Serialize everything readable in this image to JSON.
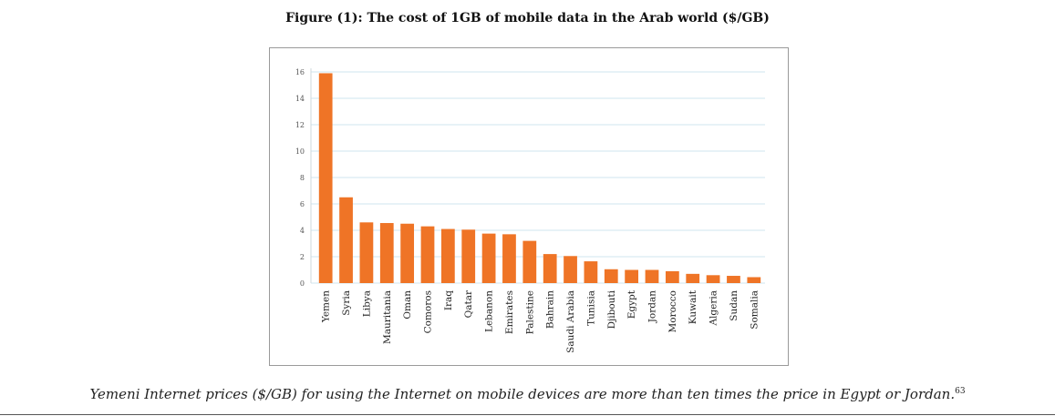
{
  "figure": {
    "title": "Figure (1): The cost of 1GB of mobile data in the Arab world ($/GB)",
    "caption": "Yemeni Internet prices ($/GB) for using the Internet on mobile devices are more than ten times the price in Egypt or Jordan.",
    "footnote": "63"
  },
  "chart_data": {
    "type": "bar",
    "title": "Figure (1): The cost of 1GB of mobile data in the Arab world ($/GB)",
    "xlabel": "",
    "ylabel": "",
    "ylim": [
      0,
      16
    ],
    "yticks": [
      0,
      2,
      4,
      6,
      8,
      10,
      12,
      14,
      16
    ],
    "grid": true,
    "legend": "none",
    "bar_color": "#ef7426",
    "grid_color": "#cfe6ef",
    "categories": [
      "Yemen",
      "Syria",
      "Libya",
      "Mauritania",
      "Oman",
      "Comoros",
      "Iraq",
      "Qatar",
      "Lebanon",
      "Emirates",
      "Palestine",
      "Bahrain",
      "Saudi Arabia",
      "Tunisia",
      "Djibouti",
      "Egypt",
      "Jordan",
      "Morocco",
      "Kuwait",
      "Algeria",
      "Sudan",
      "Somalia"
    ],
    "values": [
      15.9,
      6.5,
      4.6,
      4.55,
      4.5,
      4.3,
      4.1,
      4.05,
      3.75,
      3.7,
      3.2,
      2.2,
      2.05,
      1.65,
      1.05,
      1.0,
      1.0,
      0.9,
      0.7,
      0.6,
      0.55,
      0.45
    ]
  }
}
